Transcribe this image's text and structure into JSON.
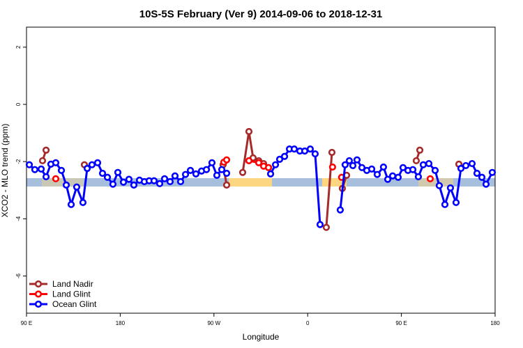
{
  "chart_data": {
    "type": "line",
    "title": "10S-5S February (Ver 9)   2014-09-06 to 2018-12-31",
    "x_label": "Longitude",
    "y_label": "XCO2 - MLO trend (ppm)",
    "xlim": [
      90,
      540
    ],
    "ylim": [
      -7.3,
      2.7
    ],
    "xticks": [
      {
        "value": 90,
        "label": "90 E"
      },
      180,
      {
        "value": 270,
        "label": "90 W"
      },
      {
        "value": 360,
        "label": "0"
      },
      {
        "value": 450,
        "label": "90 E"
      },
      {
        "value": 540,
        "label": "180"
      }
    ],
    "yticks": [
      2,
      0,
      -2,
      -4,
      -6
    ],
    "legend": "bottom-left",
    "series": [
      {
        "name": "Land Nadir",
        "color": "#a52a2a",
        "x": [
          105.4,
          108.8,
          null,
          145.6,
          null,
          278.8,
          282.2,
          null,
          297.6,
          303.6,
          307.6,
          313.0,
          317.7,
          322.4,
          null,
          377.9,
          383.3,
          null,
          393.3,
          397.4,
          null,
          464.3,
          467.7,
          null,
          505.2
        ],
        "values": [
          -1.97,
          -1.6,
          null,
          -2.11,
          null,
          -2.11,
          -2.82,
          null,
          -2.38,
          -0.95,
          -1.87,
          -1.97,
          -2.07,
          -2.21,
          null,
          -4.3,
          -1.68,
          null,
          -2.94,
          -2.48,
          null,
          -1.97,
          -1.6,
          null,
          -2.09
        ]
      },
      {
        "name": "Land Glint",
        "color": "#ff0000",
        "x": [
          118.1,
          null,
          279.5,
          282.2,
          null,
          303.6,
          313.0,
          317.7,
          322.4,
          null,
          383.9,
          null,
          392.6,
          null,
          477.7
        ],
        "values": [
          -2.6,
          null,
          -2.02,
          -1.94,
          null,
          -1.97,
          -2.04,
          -2.16,
          -2.21,
          null,
          -2.19,
          null,
          -2.55,
          null,
          -2.6
        ]
      },
      {
        "name": "Ocean Glint",
        "color": "#0000ff",
        "x": [
          92.7,
          98.0,
          104.1,
          108.8,
          113.4,
          118.1,
          123.5,
          128.2,
          132.9,
          138.2,
          144.2,
          148.3,
          152.9,
          158.3,
          163.0,
          167.7,
          173.0,
          177.7,
          183.1,
          188.4,
          193.1,
          198.5,
          203.2,
          207.8,
          212.5,
          217.9,
          222.6,
          227.9,
          232.6,
          238.0,
          242.7,
          247.4,
          252.7,
          258.1,
          262.8,
          268.1,
          272.8,
          277.5,
          282.2,
          null,
          324.4,
          329.1,
          333.1,
          337.8,
          342.5,
          347.1,
          352.5,
          357.2,
          362.5,
          367.2,
          371.9,
          null,
          391.3,
          396.0,
          400.0,
          403.4,
          407.4,
          412.1,
          416.8,
          421.5,
          426.8,
          432.8,
          436.9,
          441.6,
          446.9,
          451.6,
          456.3,
          461.0,
          466.3,
          471.0,
          476.4,
          482.4,
          486.4,
          491.8,
          497.1,
          502.5,
          507.2,
          511.9,
          517.9,
          522.6,
          527.3,
          531.3,
          537.3
        ],
        "values": [
          -2.11,
          -2.28,
          -2.26,
          -2.53,
          -2.09,
          -2.04,
          -2.31,
          -2.82,
          -3.5,
          -2.89,
          -3.43,
          -2.24,
          -2.11,
          -2.04,
          -2.41,
          -2.55,
          -2.79,
          -2.38,
          -2.72,
          -2.62,
          -2.82,
          -2.65,
          -2.7,
          -2.67,
          -2.67,
          -2.77,
          -2.6,
          -2.7,
          -2.5,
          -2.7,
          -2.45,
          -2.31,
          -2.43,
          -2.33,
          -2.28,
          -2.04,
          -2.48,
          -2.28,
          -2.41,
          null,
          -2.43,
          -2.11,
          -1.92,
          -1.82,
          -1.56,
          -1.56,
          -1.63,
          -1.63,
          -1.56,
          -1.73,
          -4.2,
          null,
          -3.69,
          -2.11,
          -1.97,
          -2.14,
          -1.94,
          -2.21,
          -2.31,
          -2.26,
          -2.45,
          -2.19,
          -2.62,
          -2.5,
          -2.55,
          -2.21,
          -2.31,
          -2.28,
          -2.53,
          -2.11,
          -2.07,
          -2.31,
          -2.84,
          -3.5,
          -2.92,
          -3.43,
          -2.24,
          -2.14,
          -2.07,
          -2.41,
          -2.55,
          -2.79,
          -2.38
        ]
      }
    ]
  }
}
